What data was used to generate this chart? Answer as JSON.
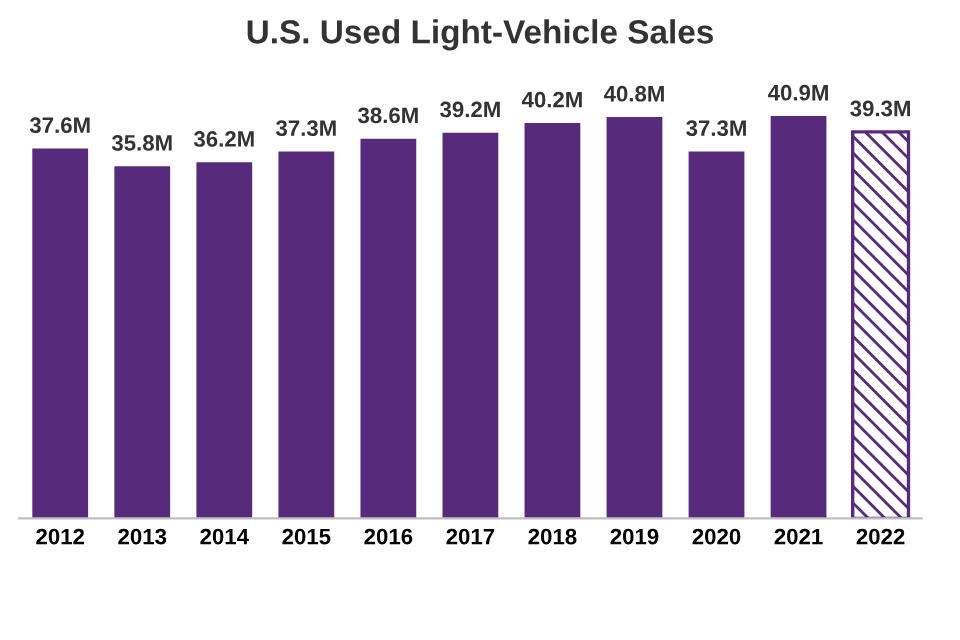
{
  "chart_data": {
    "type": "bar",
    "title": "U.S. Used Light-Vehicle Sales",
    "categories": [
      "2012",
      "2013",
      "2014",
      "2015",
      "2016",
      "2017",
      "2018",
      "2019",
      "2020",
      "2021",
      "2022"
    ],
    "series": [
      {
        "color": "#582a7b",
        "values": [
          37.6,
          35.8,
          36.2,
          37.3,
          38.6,
          39.2,
          40.2,
          40.8,
          37.3,
          40.9,
          null
        ],
        "value_labels": [
          "37.6M",
          "35.8M",
          "36.2M",
          "37.3M",
          "38.6M",
          "39.2M",
          "40.2M",
          "40.8M",
          "37.3M",
          "40.9M",
          null
        ]
      },
      {
        "color": "#582a7b",
        "values": [
          null,
          null,
          null,
          null,
          null,
          null,
          null,
          null,
          null,
          null,
          39.3
        ],
        "value_labels": [
          null,
          null,
          null,
          null,
          null,
          null,
          null,
          null,
          null,
          null,
          "39.3M"
        ]
      }
    ],
    "tick_labels": "x",
    "grid": false,
    "legend": false
  }
}
